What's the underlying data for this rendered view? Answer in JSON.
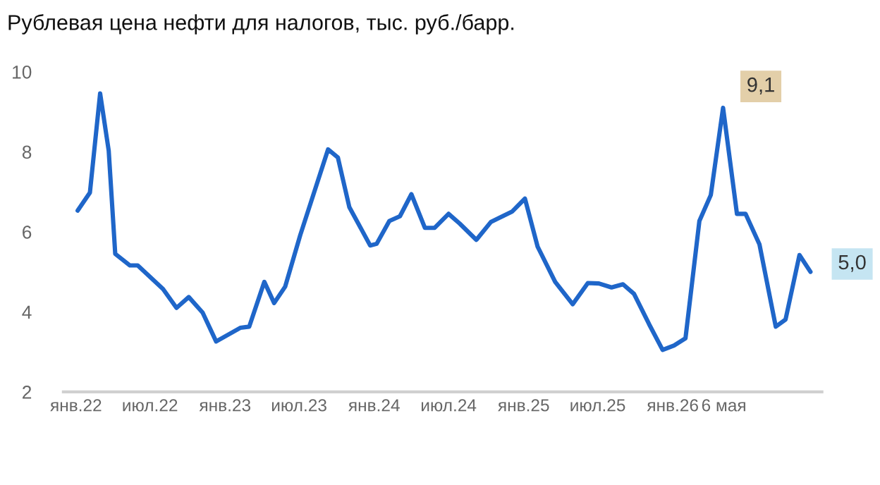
{
  "chart_data": {
    "type": "line",
    "title": "Рублевая цена нефти для налогов, тыс. руб./барр.",
    "x": [
      "2022-01-05",
      "2022-02-04",
      "2022-03-01",
      "2022-03-22",
      "2022-04-07",
      "2022-05-13",
      "2022-06-01",
      "2022-08-02",
      "2022-09-04",
      "2022-10-04",
      "2022-11-07",
      "2022-12-10",
      "2023-02-07",
      "2023-03-01",
      "2023-04-07",
      "2023-05-01",
      "2023-05-28",
      "2023-07-04",
      "2023-09-10",
      "2023-10-04",
      "2023-11-01",
      "2023-12-22",
      "2024-01-07",
      "2024-02-07",
      "2024-03-04",
      "2024-04-01",
      "2024-05-04",
      "2024-05-28",
      "2024-07-01",
      "2024-07-28",
      "2024-09-07",
      "2024-10-13",
      "2024-12-04",
      "2025-01-04",
      "2025-02-04",
      "2025-03-19",
      "2025-05-01",
      "2025-06-07",
      "2025-07-04",
      "2025-08-04",
      "2025-09-01",
      "2025-09-28",
      "2025-11-04",
      "2025-12-07",
      "2026-01-04",
      "2026-02-01",
      "2026-03-07",
      "2026-04-04",
      "2026-05-04",
      "2026-06-07",
      "2026-06-28",
      "2026-08-01",
      "2026-09-10",
      "2026-10-04",
      "2026-11-07",
      "2026-12-04"
    ],
    "series": [
      {
        "color": "#1f66c9",
        "values": [
          6.53,
          6.98,
          9.46,
          8.03,
          5.45,
          5.16,
          5.16,
          4.57,
          4.1,
          4.37,
          3.98,
          3.26,
          3.6,
          3.63,
          4.75,
          4.22,
          4.63,
          5.92,
          8.06,
          7.86,
          6.62,
          5.66,
          5.7,
          6.27,
          6.39,
          6.94,
          6.1,
          6.1,
          6.45,
          6.21,
          5.8,
          6.25,
          6.51,
          6.83,
          5.63,
          4.75,
          4.19,
          4.72,
          4.71,
          4.61,
          4.69,
          4.45,
          3.69,
          3.05,
          3.16,
          3.34,
          6.27,
          6.92,
          9.1,
          6.45,
          6.45,
          5.69,
          3.63,
          3.81,
          5.42,
          5.0
        ]
      }
    ],
    "xlim": [
      "2021-12-01",
      "2027-01-01"
    ],
    "xticks": [
      {
        "value": "2022-01-01",
        "label": "янв.22"
      },
      {
        "value": "2022-07-01",
        "label": "июл.22"
      },
      {
        "value": "2023-01-01",
        "label": "янв.23"
      },
      {
        "value": "2023-07-01",
        "label": "июл.23"
      },
      {
        "value": "2024-01-01",
        "label": "янв.24"
      },
      {
        "value": "2024-07-01",
        "label": "июл.24"
      },
      {
        "value": "2025-01-01",
        "label": "янв.25"
      },
      {
        "value": "2025-07-01",
        "label": "июл.25"
      },
      {
        "value": "2026-01-01",
        "label": "янв.26"
      },
      {
        "value": "2026-05-06",
        "label": "6 мая"
      }
    ],
    "ylim": [
      2,
      10
    ],
    "yticks": [
      2,
      4,
      6,
      8,
      10
    ],
    "grid": false,
    "legend": false,
    "marker": "none",
    "line_style": "solid",
    "annotations": [
      {
        "text": "9,1",
        "x": "2026-05-04",
        "y": 9.1
      },
      {
        "text": "5,0",
        "x": "2026-12-04",
        "y": 5.0
      }
    ]
  }
}
